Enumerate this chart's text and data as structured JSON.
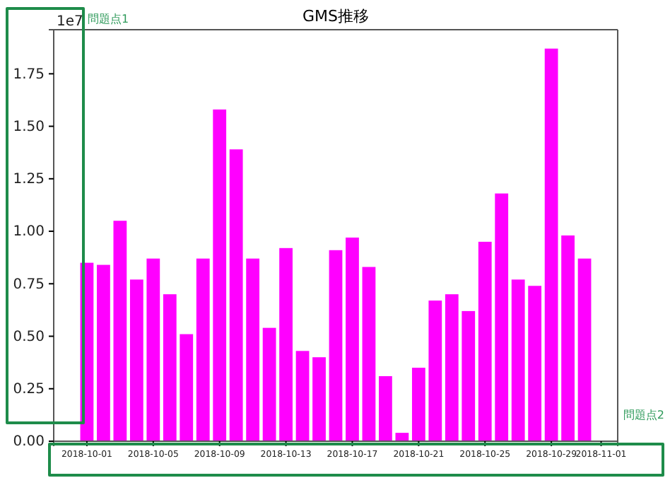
{
  "chart_data": {
    "type": "bar",
    "title": "GMS推移",
    "x": [
      "2018-10-01",
      "2018-10-02",
      "2018-10-03",
      "2018-10-04",
      "2018-10-05",
      "2018-10-06",
      "2018-10-07",
      "2018-10-08",
      "2018-10-09",
      "2018-10-10",
      "2018-10-11",
      "2018-10-12",
      "2018-10-13",
      "2018-10-14",
      "2018-10-15",
      "2018-10-16",
      "2018-10-17",
      "2018-10-18",
      "2018-10-19",
      "2018-10-20",
      "2018-10-21",
      "2018-10-22",
      "2018-10-23",
      "2018-10-24",
      "2018-10-25",
      "2018-10-26",
      "2018-10-27",
      "2018-10-28",
      "2018-10-29",
      "2018-10-30",
      "2018-10-31"
    ],
    "values": [
      0.85,
      0.84,
      1.05,
      0.77,
      0.87,
      0.7,
      0.51,
      0.87,
      1.58,
      1.39,
      0.87,
      0.54,
      0.92,
      0.43,
      0.4,
      0.91,
      0.97,
      0.83,
      0.31,
      0.04,
      0.35,
      0.67,
      0.7,
      0.62,
      0.95,
      1.18,
      0.77,
      0.74,
      1.87,
      0.98,
      0.87
    ],
    "color": "#ff00ff",
    "xlim": [
      "2018-09-29",
      "2018-11-02"
    ],
    "xticks": [
      {
        "value": "2018-10-01",
        "label": "2018-10-01"
      },
      {
        "value": "2018-10-05",
        "label": "2018-10-05"
      },
      {
        "value": "2018-10-09",
        "label": "2018-10-09"
      },
      {
        "value": "2018-10-13",
        "label": "2018-10-13"
      },
      {
        "value": "2018-10-17",
        "label": "2018-10-17"
      },
      {
        "value": "2018-10-21",
        "label": "2018-10-21"
      },
      {
        "value": "2018-10-25",
        "label": "2018-10-25"
      },
      {
        "value": "2018-10-29",
        "label": "2018-10-29"
      },
      {
        "value": "2018-11-01",
        "label": "2018-11-01"
      }
    ],
    "ylim": [
      0,
      1.96
    ],
    "yticks": [
      {
        "value": 0,
        "label": "0.00"
      },
      {
        "value": 0.25,
        "label": "0.25"
      },
      {
        "value": 0.5,
        "label": "0.50"
      },
      {
        "value": 0.75,
        "label": "0.75"
      },
      {
        "value": 1,
        "label": "1.00"
      },
      {
        "value": 1.25,
        "label": "1.25"
      },
      {
        "value": 1.5,
        "label": "1.50"
      },
      {
        "value": 1.75,
        "label": "1.75"
      }
    ],
    "annotations": [
      "1e7",
      "問題点1",
      "問題点2"
    ]
  }
}
